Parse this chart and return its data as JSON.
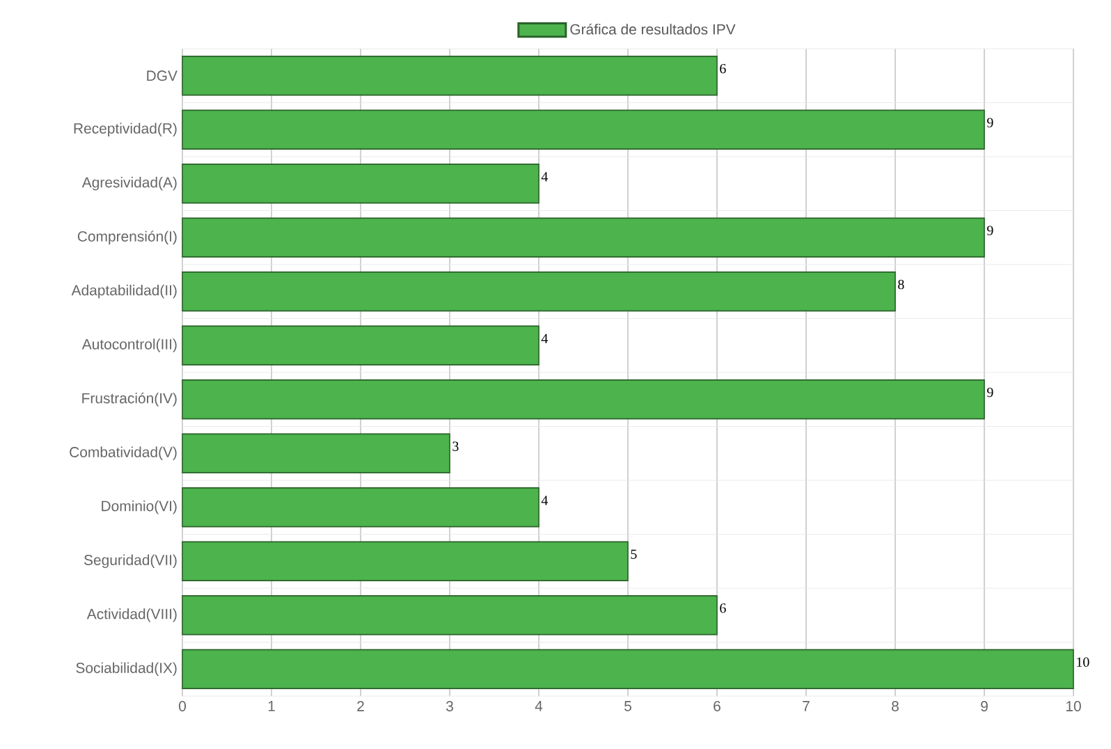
{
  "chart_data": {
    "type": "bar",
    "orientation": "horizontal",
    "categories": [
      "DGV",
      "Receptividad(R)",
      "Agresividad(A)",
      "Comprensión(I)",
      "Adaptabilidad(II)",
      "Autocontrol(III)",
      "Frustración(IV)",
      "Combatividad(V)",
      "Dominio(VI)",
      "Seguridad(VII)",
      "Actividad(VIII)",
      "Sociabilidad(IX)"
    ],
    "series": [
      {
        "name": "Gráfica de resultados IPV",
        "color": "#4db34d",
        "values": [
          6,
          9,
          4,
          9,
          8,
          4,
          9,
          3,
          4,
          5,
          6,
          10
        ]
      }
    ],
    "xlim": [
      0,
      10
    ],
    "xticks": [
      0,
      1,
      2,
      3,
      4,
      5,
      6,
      7,
      8,
      9,
      10
    ],
    "grid": true,
    "legend": "top",
    "data_labels": true
  }
}
